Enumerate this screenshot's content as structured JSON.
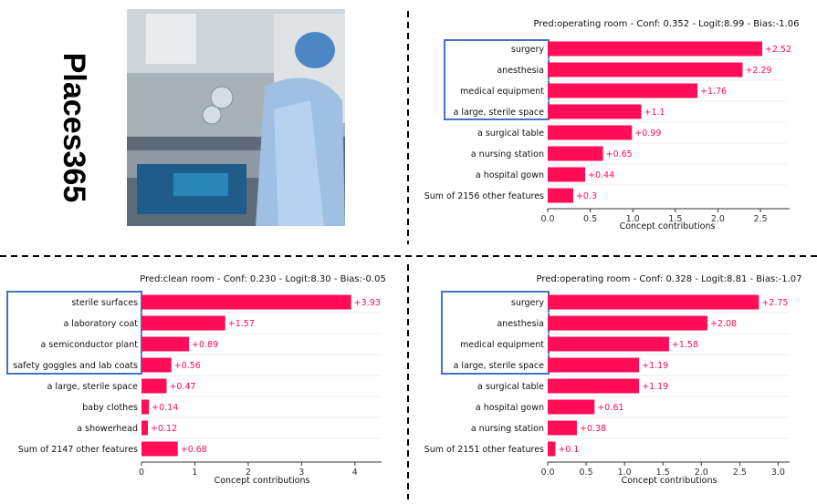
{
  "dataset_label": "Places365",
  "colors": {
    "bar": "#ff0d57",
    "highlight_box": "#4472c4",
    "axis": "#333333",
    "divider": "#000000"
  },
  "input_image": {
    "description_icon": "photo-icon"
  },
  "chart_data": [
    {
      "type": "bar",
      "orientation": "horizontal",
      "title": "Pred:operating room - Conf: 0.352 - Logit:8.99 - Bias:-1.06",
      "xlabel": "Concept contributions",
      "categories": [
        "surgery",
        "anesthesia",
        "medical equipment",
        "a large, sterile space",
        "a surgical table",
        "a nursing station",
        "a hospital gown",
        "Sum of 2156 other features"
      ],
      "values": [
        2.52,
        2.29,
        1.76,
        1.1,
        0.99,
        0.65,
        0.44,
        0.3
      ],
      "value_labels": [
        "+2.52",
        "+2.29",
        "+1.76",
        "+1.1",
        "+0.99",
        "+0.65",
        "+0.44",
        "+0.3"
      ],
      "xlim": [
        0,
        2.8
      ],
      "xticks": [
        0.0,
        0.5,
        1.0,
        1.5,
        2.0,
        2.5
      ],
      "xtick_labels": [
        "0.0",
        "0.5",
        "1.0",
        "1.5",
        "2.0",
        "2.5"
      ],
      "highlighted_count": 4
    },
    {
      "type": "bar",
      "orientation": "horizontal",
      "title": "Pred:clean room - Conf: 0.230 - Logit:8.30 - Bias:-0.05",
      "xlabel": "Concept contributions",
      "categories": [
        "sterile surfaces",
        "a laboratory coat",
        "a semiconductor plant",
        "safety goggles and lab coats",
        "a large, sterile space",
        "baby clothes",
        "a showerhead",
        "Sum of 2147 other features"
      ],
      "values": [
        3.93,
        1.57,
        0.89,
        0.56,
        0.47,
        0.14,
        0.12,
        0.68
      ],
      "value_labels": [
        "+3.93",
        "+1.57",
        "+0.89",
        "+0.56",
        "+0.47",
        "+0.14",
        "+0.12",
        "+0.68"
      ],
      "xlim": [
        0,
        4.5
      ],
      "xticks": [
        0,
        1,
        2,
        3,
        4
      ],
      "xtick_labels": [
        "0",
        "1",
        "2",
        "3",
        "4"
      ],
      "highlighted_count": 4
    },
    {
      "type": "bar",
      "orientation": "horizontal",
      "title": "Pred:operating room - Conf: 0.328 - Logit:8.81 - Bias:-1.07",
      "xlabel": "Concept contributions",
      "categories": [
        "surgery",
        "anesthesia",
        "medical equipment",
        "a large, sterile space",
        "a surgical table",
        "a hospital gown",
        "a nursing station",
        "Sum of 2151 other features"
      ],
      "values": [
        2.75,
        2.08,
        1.58,
        1.19,
        1.19,
        0.61,
        0.38,
        0.1
      ],
      "value_labels": [
        "+2.75",
        "+2.08",
        "+1.58",
        "+1.19",
        "+1.19",
        "+0.61",
        "+0.38",
        "+0.1"
      ],
      "xlim": [
        0,
        3.15
      ],
      "xticks": [
        0.0,
        0.5,
        1.0,
        1.5,
        2.0,
        2.5,
        3.0
      ],
      "xtick_labels": [
        "0.0",
        "0.5",
        "1.0",
        "1.5",
        "2.0",
        "2.5",
        "3.0"
      ],
      "highlighted_count": 4
    }
  ]
}
